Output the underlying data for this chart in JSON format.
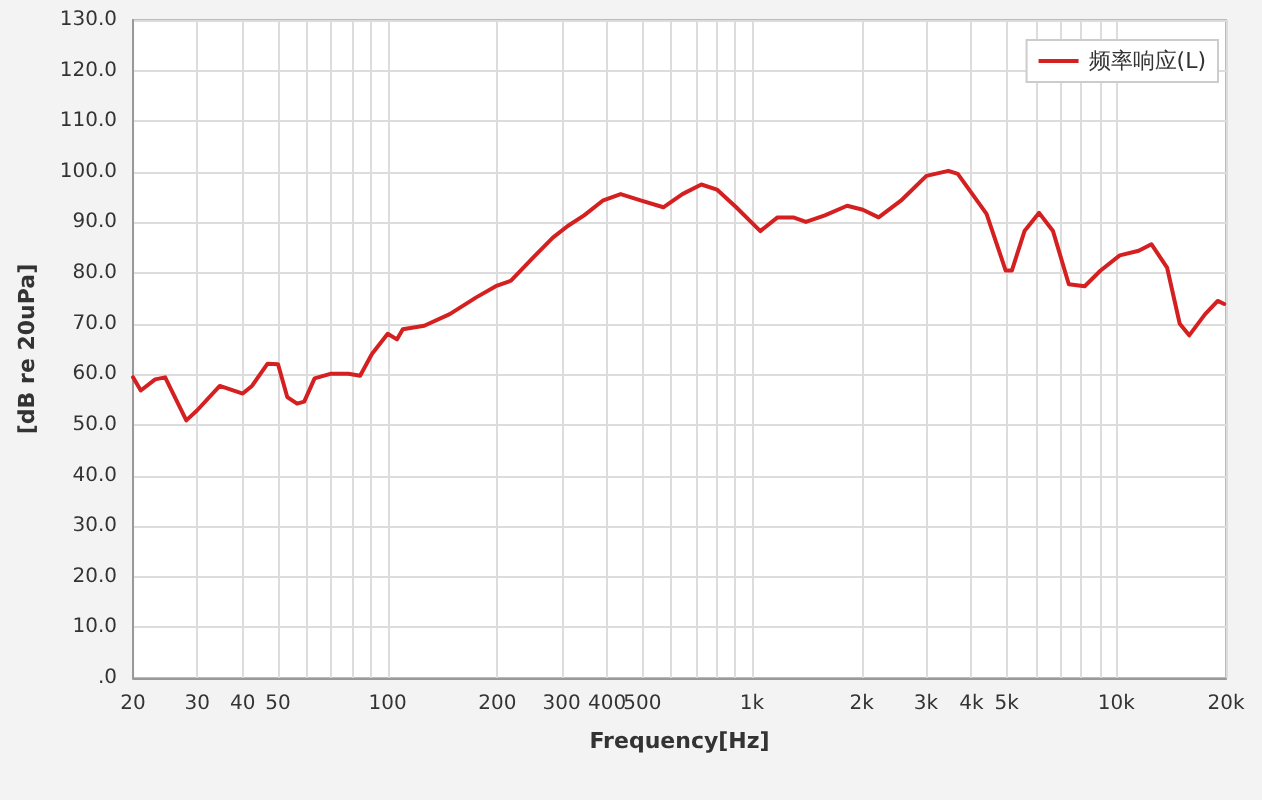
{
  "chart_data": {
    "type": "line",
    "xlabel": "Frequency[Hz]",
    "ylabel": "[dB re 20uPa]",
    "log": "x",
    "grid": true,
    "legend": "top right",
    "marker": "none",
    "line_style": "solid",
    "xlim": [
      20,
      20000
    ],
    "xticks": [
      20,
      30,
      40,
      50,
      {
        "value": 60,
        "label": null
      },
      {
        "value": 70,
        "label": null
      },
      {
        "value": 80,
        "label": null
      },
      {
        "value": 90,
        "label": null
      },
      100,
      200,
      300,
      400,
      500,
      {
        "value": 600,
        "label": null
      },
      {
        "value": 700,
        "label": null
      },
      {
        "value": 800,
        "label": null
      },
      {
        "value": 900,
        "label": null
      },
      {
        "value": 1000,
        "label": "1k"
      },
      {
        "value": 2000,
        "label": "2k"
      },
      {
        "value": 3000,
        "label": "3k"
      },
      {
        "value": 4000,
        "label": "4k"
      },
      {
        "value": 5000,
        "label": "5k"
      },
      {
        "value": 6000,
        "label": null
      },
      {
        "value": 7000,
        "label": null
      },
      {
        "value": 8000,
        "label": null
      },
      {
        "value": 9000,
        "label": null
      },
      {
        "value": 10000,
        "label": "10k"
      },
      {
        "value": 20000,
        "label": "20k"
      }
    ],
    "ylim": [
      0,
      130
    ],
    "yticks": [
      {
        "value": 0,
        "label": ".0"
      },
      {
        "value": 10,
        "label": "10.0"
      },
      {
        "value": 20,
        "label": "20.0"
      },
      {
        "value": 30,
        "label": "30.0"
      },
      {
        "value": 40,
        "label": "40.0"
      },
      {
        "value": 50,
        "label": "50.0"
      },
      {
        "value": 60,
        "label": "60.0"
      },
      {
        "value": 70,
        "label": "70.0"
      },
      {
        "value": 80,
        "label": "80.0"
      },
      {
        "value": 90,
        "label": "90.0"
      },
      {
        "value": 100,
        "label": "100.0"
      },
      {
        "value": 110,
        "label": "110.0"
      },
      {
        "value": 120,
        "label": "120.0"
      },
      {
        "value": 130,
        "label": "130.0"
      }
    ],
    "series": [
      {
        "name": "频率响应(L)",
        "color": "#d42020",
        "x": [
          20,
          21,
          23,
          24.5,
          28,
          30,
          34.6,
          40,
          42.4,
          46.8,
          50,
          53,
          56.4,
          59,
          63,
          69.6,
          78,
          84,
          90.5,
          100,
          106,
          110,
          126,
          148,
          175,
          198,
          218,
          251,
          284,
          312,
          346,
          389,
          436,
          497,
          571,
          644,
          726,
          801,
          905,
          1054,
          1175,
          1298,
          1406,
          1585,
          1824,
          2014,
          2226,
          2562,
          3011,
          3459,
          3672,
          4403,
          4969,
          5167,
          5597,
          6138,
          6702,
          7405,
          8186,
          9055,
          10217,
          11520,
          12480,
          13780,
          14930,
          15850,
          17530,
          18980,
          19780
        ],
        "values": [
          59.4,
          56.8,
          59.0,
          59.4,
          50.9,
          52.9,
          57.7,
          56.2,
          57.7,
          62.1,
          62.0,
          55.5,
          54.2,
          54.6,
          59.2,
          60.1,
          60.1,
          59.7,
          64.0,
          68.0,
          66.9,
          68.9,
          69.6,
          71.9,
          75.2,
          77.4,
          78.5,
          83.1,
          87.0,
          89.3,
          91.4,
          94.3,
          95.6,
          94.3,
          93.0,
          95.6,
          97.5,
          96.5,
          93.0,
          88.3,
          91.0,
          91.0,
          90.1,
          91.4,
          93.3,
          92.5,
          91.0,
          94.3,
          99.2,
          100.2,
          99.6,
          91.7,
          80.5,
          80.5,
          88.3,
          91.9,
          88.3,
          77.8,
          77.4,
          80.5,
          83.5,
          84.4,
          85.7,
          81.1,
          70.0,
          67.7,
          71.9,
          74.5,
          73.9
        ]
      }
    ]
  }
}
